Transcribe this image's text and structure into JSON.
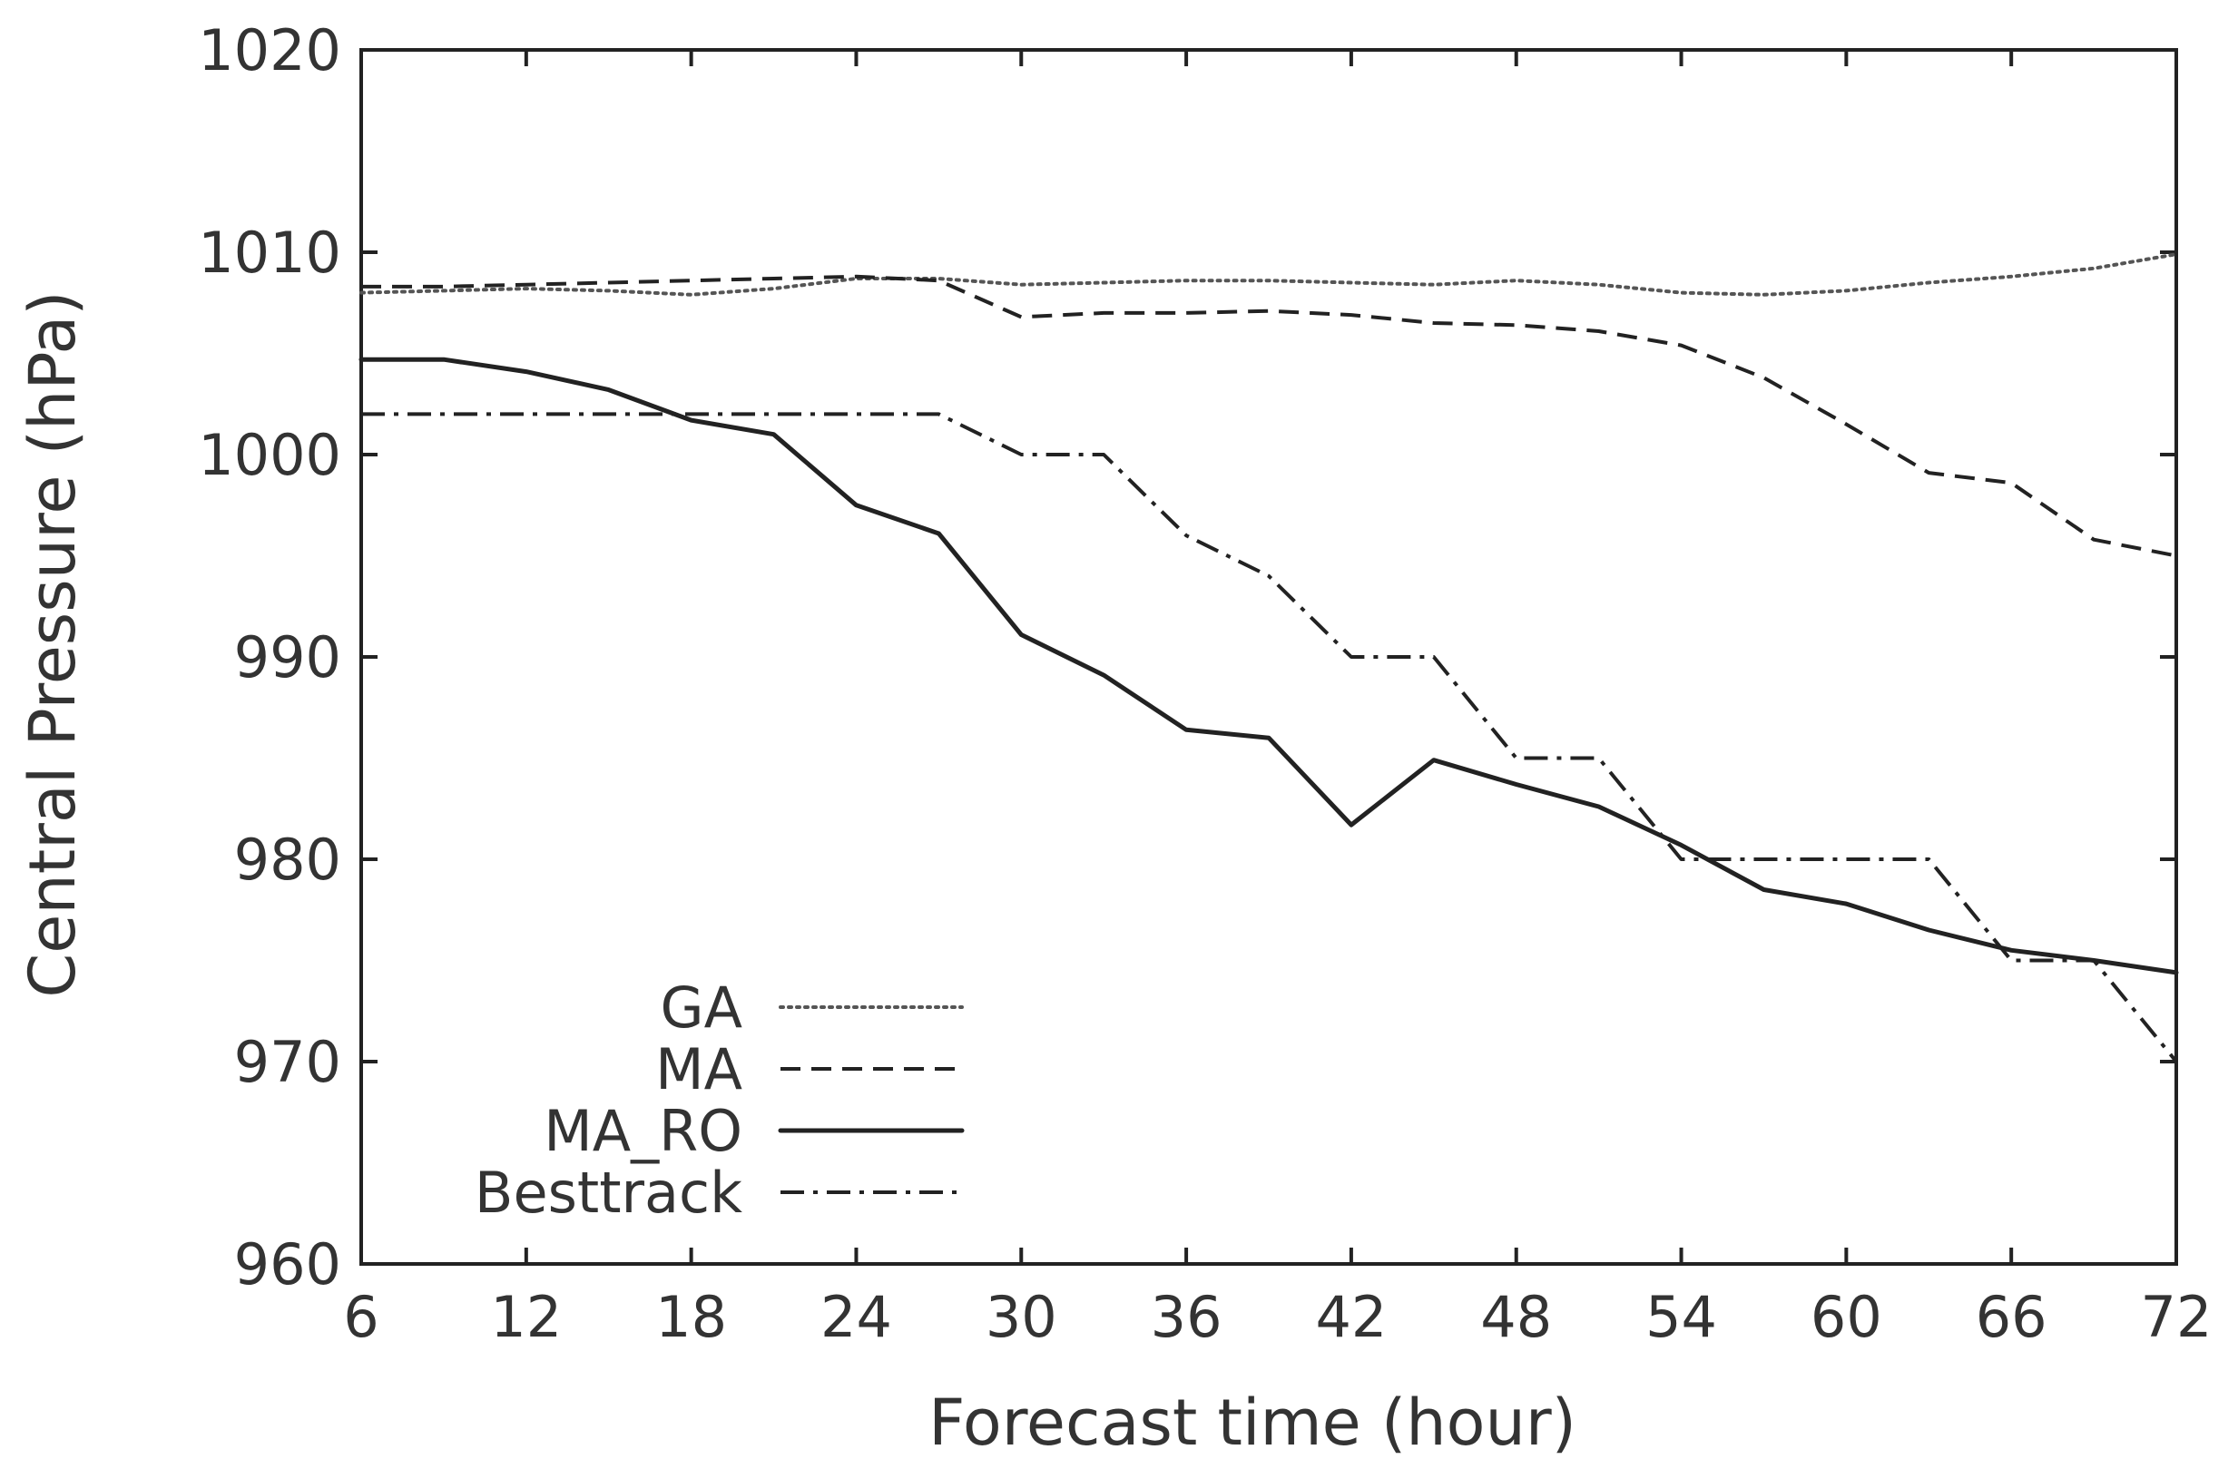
{
  "chart_data": {
    "type": "line",
    "title": "",
    "xlabel": "Forecast time (hour)",
    "ylabel": "Central Pressure (hPa)",
    "xlim": [
      6,
      72
    ],
    "ylim": [
      960,
      1020
    ],
    "xticks": [
      6,
      12,
      18,
      24,
      30,
      36,
      42,
      48,
      54,
      60,
      66,
      72
    ],
    "yticks": [
      960,
      970,
      980,
      990,
      1000,
      1010,
      1020
    ],
    "grid": false,
    "legend_position": "bottom-left",
    "series": [
      {
        "name": "GA",
        "style": "dotted",
        "color": "#555555",
        "x": [
          6,
          9,
          12,
          15,
          18,
          21,
          24,
          27,
          30,
          33,
          36,
          39,
          42,
          45,
          48,
          51,
          54,
          57,
          60,
          63,
          66,
          69,
          72
        ],
        "values": [
          1008,
          1008.1,
          1008.2,
          1008.1,
          1007.9,
          1008.2,
          1008.7,
          1008.7,
          1008.4,
          1008.5,
          1008.6,
          1008.6,
          1008.5,
          1008.4,
          1008.6,
          1008.4,
          1008,
          1007.9,
          1008.1,
          1008.5,
          1008.8,
          1009.2,
          1009.9
        ]
      },
      {
        "name": "MA",
        "style": "dashed",
        "color": "#222222",
        "x": [
          6,
          9,
          12,
          15,
          18,
          21,
          24,
          27,
          30,
          33,
          36,
          39,
          42,
          45,
          48,
          51,
          54,
          57,
          60,
          63,
          66,
          69,
          72
        ],
        "values": [
          1008.3,
          1008.3,
          1008.4,
          1008.5,
          1008.6,
          1008.7,
          1008.8,
          1008.6,
          1006.8,
          1007,
          1007,
          1007.1,
          1006.9,
          1006.5,
          1006.4,
          1006.1,
          1005.4,
          1003.8,
          1001.5,
          999.1,
          998.6,
          995.8,
          995
        ]
      },
      {
        "name": "MA_RO",
        "style": "solid",
        "color": "#222222",
        "x": [
          6,
          9,
          12,
          15,
          18,
          21,
          24,
          27,
          30,
          33,
          36,
          39,
          42,
          45,
          48,
          51,
          54,
          57,
          60,
          63,
          66,
          69,
          72
        ],
        "values": [
          1004.7,
          1004.7,
          1004.1,
          1003.2,
          1001.7,
          1001,
          997.5,
          996.1,
          991.1,
          989.1,
          986.4,
          986,
          981.7,
          984.9,
          983.7,
          982.6,
          980.7,
          978.5,
          977.8,
          976.5,
          975.5,
          975,
          974.4
        ]
      },
      {
        "name": "Besttrack",
        "style": "dash-dot",
        "color": "#222222",
        "x": [
          6,
          9,
          12,
          15,
          18,
          21,
          24,
          27,
          30,
          33,
          36,
          39,
          42,
          45,
          48,
          51,
          54,
          57,
          60,
          63,
          66,
          69,
          72
        ],
        "values": [
          1002,
          1002,
          1002,
          1002,
          1002,
          1002,
          1002,
          1002,
          1000,
          1000,
          996,
          994,
          990,
          990,
          985,
          985,
          980,
          980,
          980,
          980,
          975,
          975,
          970
        ]
      }
    ]
  }
}
